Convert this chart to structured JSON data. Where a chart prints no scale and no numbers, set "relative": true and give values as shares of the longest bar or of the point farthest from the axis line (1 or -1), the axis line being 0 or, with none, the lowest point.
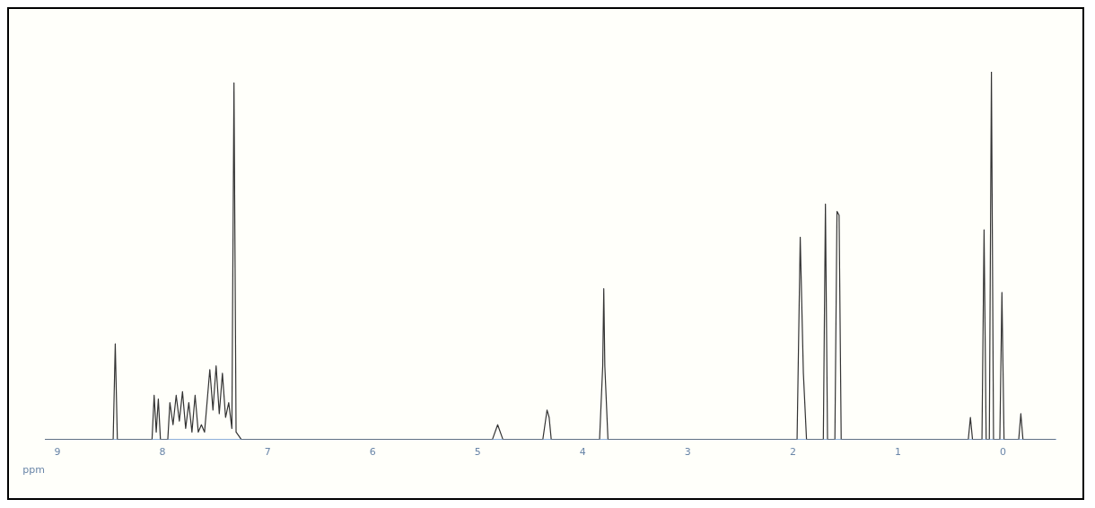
{
  "chart_data": {
    "type": "line",
    "relative": true,
    "xlabel": "ppm",
    "xlim": [
      9.12,
      -0.5
    ],
    "xticks": [
      9,
      8,
      7,
      6,
      5,
      4,
      3,
      2,
      1,
      0
    ],
    "grid": false,
    "legend": false,
    "marker": "none",
    "line_style": "solid",
    "series": [
      {
        "color": "#333333",
        "x": [
          9.12,
          8.47,
          8.45,
          8.43,
          8.1,
          8.08,
          8.06,
          8.04,
          8.02,
          7.95,
          7.93,
          7.9,
          7.87,
          7.84,
          7.81,
          7.78,
          7.75,
          7.72,
          7.69,
          7.66,
          7.63,
          7.6,
          7.55,
          7.52,
          7.49,
          7.46,
          7.43,
          7.4,
          7.37,
          7.34,
          7.32,
          7.3,
          7.25,
          4.86,
          4.81,
          4.76,
          4.38,
          4.35,
          4.34,
          4.32,
          4.3,
          3.84,
          3.81,
          3.8,
          3.79,
          3.76,
          1.96,
          1.93,
          1.9,
          1.87,
          1.71,
          1.69,
          1.67,
          1.6,
          1.58,
          1.56,
          1.54,
          0.33,
          0.31,
          0.29,
          0.2,
          0.18,
          0.16,
          0.13,
          0.11,
          0.09,
          0.03,
          0.01,
          -0.01,
          -0.15,
          -0.17,
          -0.19,
          -0.5
        ],
        "values": [
          0,
          0,
          0.26,
          0,
          0,
          0.12,
          0.02,
          0.11,
          0,
          0,
          0.1,
          0.04,
          0.12,
          0.05,
          0.13,
          0.03,
          0.1,
          0.02,
          0.12,
          0.02,
          0.04,
          0.02,
          0.19,
          0.08,
          0.2,
          0.07,
          0.18,
          0.06,
          0.1,
          0.03,
          0.97,
          0.02,
          0,
          0,
          0.04,
          0,
          0,
          0.06,
          0.08,
          0.06,
          0,
          0,
          0.2,
          0.41,
          0.2,
          0,
          0,
          0.55,
          0.18,
          0,
          0,
          0.64,
          0,
          0,
          0.62,
          0.61,
          0,
          0,
          0.06,
          0,
          0,
          0.57,
          0,
          0,
          1,
          0,
          0,
          0.4,
          0,
          0,
          0.07,
          0,
          0
        ]
      }
    ]
  }
}
